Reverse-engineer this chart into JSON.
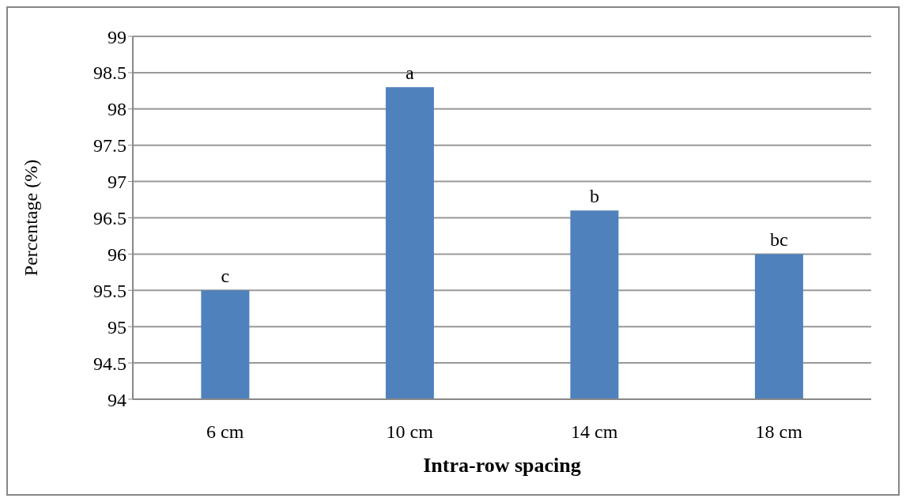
{
  "chart_data": {
    "type": "bar",
    "xlabel": "Intra-row spacing",
    "ylabel": "Percentage (%)",
    "categories": [
      "6 cm",
      "10 cm",
      "14 cm",
      "18 cm"
    ],
    "values": [
      95.5,
      98.3,
      96.6,
      96.0
    ],
    "value_labels": [
      "c",
      "a",
      "b",
      "bc"
    ],
    "color": "#4f81bd",
    "ylim": [
      94,
      99
    ],
    "yticks": [
      94,
      94.5,
      95,
      95.5,
      96,
      96.5,
      97,
      97.5,
      98,
      98.5,
      99
    ],
    "grid": "y",
    "legend": false
  }
}
